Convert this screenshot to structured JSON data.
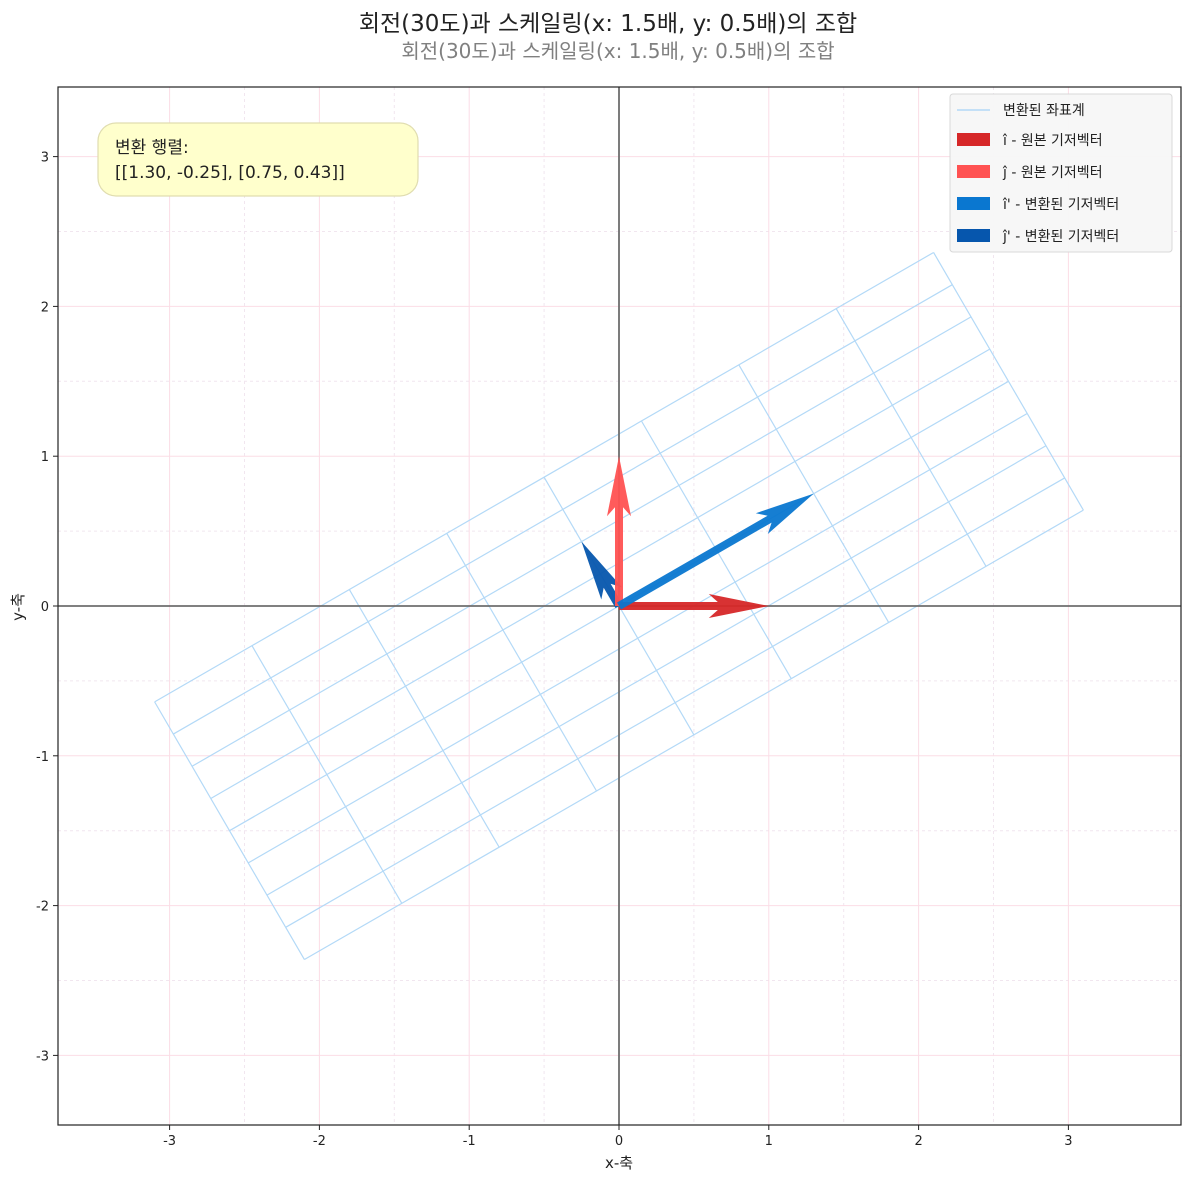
{
  "chart_data": {
    "type": "vector-field",
    "title": "회전(30도)과 스케일링(x: 1.5배, y: 0.5배)의 조합",
    "subtitle": "회전(30도)과 스케일링(x: 1.5배, y: 0.5배)의 조합",
    "xlabel": "x-축",
    "ylabel": "y-축",
    "xlim": [
      -3.75,
      3.75
    ],
    "ylim": [
      -3.46,
      3.46
    ],
    "xticks": [
      -3,
      -2,
      -1,
      0,
      1,
      2,
      3
    ],
    "yticks": [
      -3,
      -2,
      -1,
      0,
      1,
      2,
      3
    ],
    "grid": true,
    "legend_position": "top-right",
    "matrix": [
      [
        1.3,
        -0.25
      ],
      [
        0.75,
        0.43
      ]
    ],
    "transformed_grid": {
      "name": "변환된 좌표계",
      "range": [
        -2,
        2
      ],
      "step": 0.5,
      "color": "#b3d9f7"
    },
    "vectors": [
      {
        "name": "î - 원본 기저벡터",
        "x": 1,
        "y": 0,
        "color": "#d62728"
      },
      {
        "name": "ĵ - 원본 기저벡터",
        "x": 0,
        "y": 1,
        "color": "#ff5252"
      },
      {
        "name": "î'  - 변환된 기저벡터",
        "x": 1.3,
        "y": 0.75,
        "color": "#0a77d0"
      },
      {
        "name": "ĵ'  - 변환된 기저벡터",
        "x": -0.25,
        "y": 0.43,
        "color": "#0656ad"
      }
    ],
    "annotation": {
      "line1": "변환 행렬:",
      "line2": "[[1.30, -0.25], [0.75, 0.43]]"
    }
  }
}
